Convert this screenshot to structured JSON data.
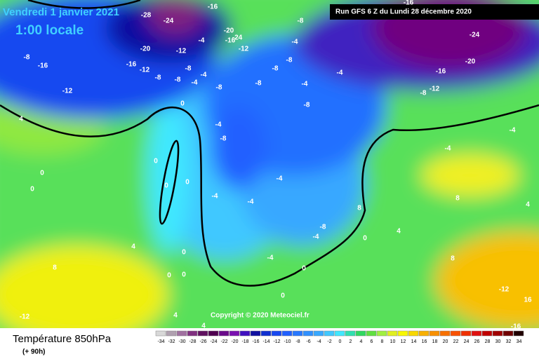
{
  "header": {
    "date": "Vendredi 1 janvier 2021",
    "time": "1:00 locale",
    "run": "Run GFS 6 Z du Lundi 28 décembre 2020",
    "copyright": "Copyright © 2020 Meteociel.fr"
  },
  "footer": {
    "title": "Température 850hPa",
    "lead": "(+ 90h)"
  },
  "legend": {
    "ticks": [
      -34,
      -32,
      -30,
      -28,
      -26,
      -24,
      -22,
      -20,
      -18,
      -16,
      -14,
      -12,
      -10,
      -8,
      -6,
      -4,
      -2,
      0,
      2,
      4,
      6,
      8,
      10,
      12,
      14,
      16,
      18,
      20,
      22,
      24,
      26,
      28,
      30,
      32,
      34
    ],
    "colors": [
      "#d8d8d8",
      "#b0a0b0",
      "#a070a0",
      "#803080",
      "#601060",
      "#500050",
      "#6a0a8a",
      "#7a10b0",
      "#4010c0",
      "#1010a0",
      "#1030d0",
      "#1848f0",
      "#2060ff",
      "#2878ff",
      "#3090ff",
      "#38a8ff",
      "#40c8ff",
      "#40e8ff",
      "#30e0b0",
      "#30d860",
      "#60e040",
      "#a0f040",
      "#e0f020",
      "#f8f800",
      "#f8d800",
      "#f8b000",
      "#f89000",
      "#f87000",
      "#f85000",
      "#f03000",
      "#e01010",
      "#c00000",
      "#a00000",
      "#700000",
      "#200000"
    ]
  },
  "map_labels": [
    "-28",
    "-24",
    "-16",
    "-20",
    "-24",
    "-16",
    "-12",
    "-20",
    "-12",
    "-4",
    "-8",
    "-16",
    "-24",
    "-20",
    "-16",
    "-12",
    "-8",
    "-8",
    "-16",
    "-12",
    "-16",
    "-12",
    "-8",
    "-8",
    "-4",
    "-8",
    "-4",
    "-8",
    "-8",
    "-8",
    "-4",
    "-8",
    "-4",
    "-4",
    "-8",
    "-4",
    "-8",
    "-4",
    "-4",
    "-4",
    "-4",
    "-4",
    "4",
    "0",
    "0",
    "0",
    "0",
    "0",
    "0",
    "4",
    "8",
    "0",
    "0",
    "0",
    "4",
    "-12",
    "-12",
    "16",
    "-16",
    "4",
    "8",
    "-8",
    "-4",
    "0",
    "0",
    "0",
    "-4",
    "4",
    "8",
    "8",
    "4"
  ]
}
